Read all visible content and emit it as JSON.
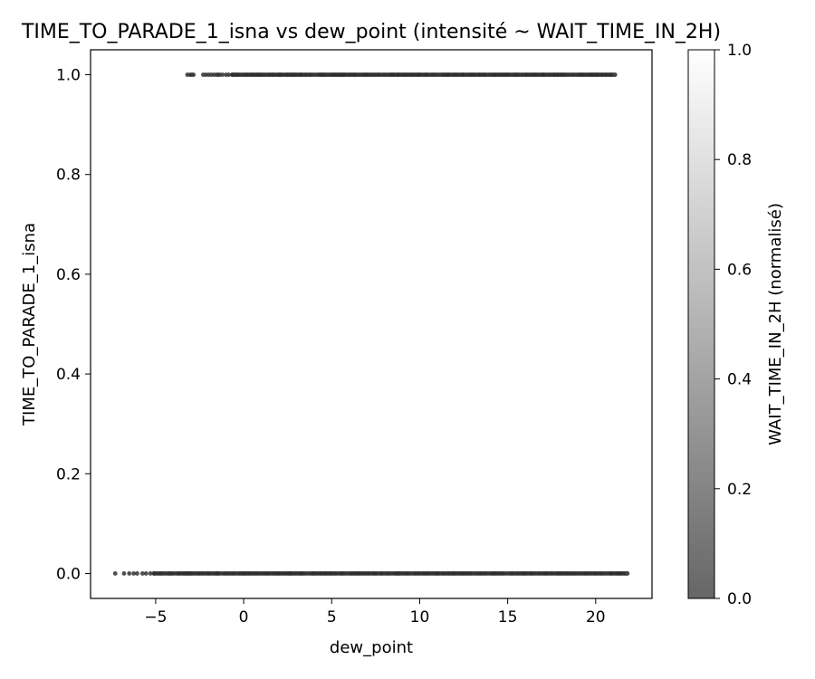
{
  "chart_data": {
    "type": "scatter",
    "title": "TIME_TO_PARADE_1_isna vs dew_point (intensité ~ WAIT_TIME_IN_2H)",
    "xlabel": "dew_point",
    "ylabel": "TIME_TO_PARADE_1_isna",
    "xlim": [
      -8.7,
      23.2
    ],
    "ylim": [
      -0.05,
      1.05
    ],
    "xticks": [
      -5,
      0,
      5,
      10,
      15,
      20
    ],
    "xtick_labels": [
      "−5",
      "0",
      "5",
      "10",
      "15",
      "20"
    ],
    "yticks": [
      0.0,
      0.2,
      0.4,
      0.6,
      0.8,
      1.0
    ],
    "ytick_labels": [
      "0.0",
      "0.2",
      "0.4",
      "0.6",
      "0.8",
      "1.0"
    ],
    "grid": false,
    "series": [
      {
        "y": 1.0,
        "x_range": [
          -3.2,
          21.1
        ],
        "x_sparse": [
          -3.2,
          -3.05,
          -2.95,
          -2.85,
          -2.3,
          -2.15,
          -2.0,
          -1.85,
          -1.7,
          -1.55,
          -1.45,
          -1.35,
          -1.2,
          -1.0,
          -0.85,
          -0.65
        ]
      },
      {
        "y": 0.0,
        "x_range": [
          -7.3,
          21.8
        ],
        "x_sparse": [
          -7.3,
          -6.8,
          -6.5,
          -6.25,
          -6.05,
          -5.75,
          -5.55,
          -5.3,
          -5.1
        ]
      }
    ],
    "colorbar": {
      "label": "WAIT_TIME_IN_2H (normalisé)",
      "range": [
        0.0,
        1.0
      ],
      "ticks": [
        0.0,
        0.2,
        0.4,
        0.6,
        0.8,
        1.0
      ],
      "tick_labels": [
        "0.0",
        "0.2",
        "0.4",
        "0.6",
        "0.8",
        "1.0"
      ],
      "colormap": [
        "#666666",
        "#ffffff"
      ]
    }
  }
}
